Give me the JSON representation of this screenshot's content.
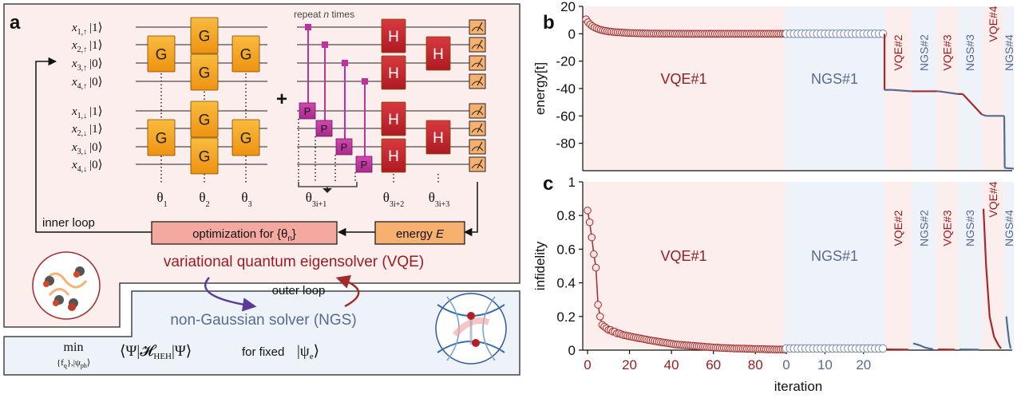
{
  "panel_labels": {
    "a": "a",
    "b": "b",
    "c": "c"
  },
  "circuit": {
    "qubits_up": [
      {
        "sym": "x",
        "sub": "1,↑",
        "ket": "|1⟩"
      },
      {
        "sym": "x",
        "sub": "2,↑",
        "ket": "|1⟩"
      },
      {
        "sym": "x",
        "sub": "3,↑",
        "ket": "|0⟩"
      },
      {
        "sym": "x",
        "sub": "4,↑",
        "ket": "|0⟩"
      }
    ],
    "qubits_down": [
      {
        "sym": "x",
        "sub": "1,↓",
        "ket": "|1⟩"
      },
      {
        "sym": "x",
        "sub": "2,↓",
        "ket": "|1⟩"
      },
      {
        "sym": "x",
        "sub": "3,↓",
        "ket": "|0⟩"
      },
      {
        "sym": "x",
        "sub": "4,↓",
        "ket": "|0⟩"
      }
    ],
    "gate_g": "G",
    "gate_h": "H",
    "gate_p": "P",
    "plus": "+",
    "repeat_label": "repeat",
    "repeat_n": "n",
    "repeat_times": "times",
    "theta_labels": [
      {
        "t": "θ",
        "sub": "1"
      },
      {
        "t": "θ",
        "sub": "2"
      },
      {
        "t": "θ",
        "sub": "3"
      },
      {
        "t": "θ",
        "sub": "3i+1"
      },
      {
        "t": "θ",
        "sub": "3i+2"
      },
      {
        "t": "θ",
        "sub": "3i+3"
      }
    ],
    "inner_loop": "inner loop",
    "optimization_text": "optimization for {θ",
    "optimization_sub": "n",
    "optimization_close": "}",
    "energy_text": "energy ",
    "energy_var": "E",
    "vqe_title": "variational quantum eigensolver (VQE)",
    "outer_loop": "outer loop",
    "ngs_title": "non-Gaussian solver (NGS)",
    "min_word": "min",
    "min_sub": "{f",
    "min_sub_q": "q",
    "min_sub_rest": "},|ψ",
    "min_sub_ph": "ph",
    "min_sub_end": "⟩",
    "expectation": "⟨Ψ|𝓗",
    "expectation_sub": "HEH",
    "expectation_end": "|Ψ⟩",
    "for_fixed": "for fixed",
    "psi_e": "|ψ",
    "psi_e_sub": "e",
    "psi_e_end": "⟩"
  },
  "colors": {
    "vqe_bg": "#fdeeee",
    "ngs_bg": "#eef2f9",
    "vqe_line": "#a42a2a",
    "ngs_line": "#56698f",
    "gate_g": "#f4a41d",
    "gate_h": "#cc2430",
    "gate_p": "#c0319f",
    "opt_box": "#f5a8a0",
    "energy_box": "#f7b06e",
    "vqe_text": "#9b1c20",
    "ngs_text": "#5a6a8e"
  },
  "chart_data": [
    {
      "id": "b",
      "type": "line",
      "ylabel": "energy[t]",
      "ylim": [
        -100,
        20
      ],
      "yticks": [
        20,
        0,
        -20,
        -40,
        -60,
        -80
      ],
      "segments": [
        {
          "label": "VQE#1",
          "kind": "vqe"
        },
        {
          "label": "NGS#1",
          "kind": "ngs"
        },
        {
          "label": "VQE#2",
          "kind": "vqe"
        },
        {
          "label": "NGS#2",
          "kind": "ngs"
        },
        {
          "label": "VQE#3",
          "kind": "vqe"
        },
        {
          "label": "NGS#3",
          "kind": "ngs"
        },
        {
          "label": "VQE#4",
          "kind": "vqe"
        },
        {
          "label": "NGS#4",
          "kind": "ngs"
        }
      ],
      "series_vqe1": [
        10.6,
        8.4,
        6.8,
        5.6,
        4.7,
        4.0,
        3.4,
        2.9,
        2.5,
        2.2,
        1.9,
        1.7,
        1.5,
        1.3,
        1.2,
        1.1,
        1.0,
        0.9,
        0.8,
        0.7,
        0.6,
        0.55,
        0.5,
        0.45,
        0.4,
        0.35,
        0.3,
        0.28,
        0.25,
        0.22,
        0.2,
        0.18,
        0.16,
        0.14,
        0.12,
        0.1,
        0.09,
        0.08,
        0.07,
        0.06,
        0.05,
        0.05,
        0.04,
        0.04,
        0.03,
        0.03,
        0.02,
        0.02,
        0.02,
        0.01,
        0.01,
        0.01,
        0.01,
        0,
        0,
        0,
        0,
        0,
        0,
        0,
        0,
        0,
        0,
        0,
        0,
        0,
        0,
        0,
        0,
        0,
        0,
        0,
        0,
        0,
        0,
        0,
        0,
        0,
        0,
        0,
        0,
        0,
        0,
        0,
        0,
        0,
        0,
        0,
        0,
        0,
        0,
        0,
        0,
        0,
        0
      ],
      "series_ngs1": [
        0,
        0,
        0,
        0,
        0,
        0,
        0,
        0,
        0,
        0,
        0,
        0,
        0,
        0,
        0,
        0,
        0,
        0,
        0,
        0,
        0,
        0,
        0,
        0,
        0,
        0
      ],
      "later_line": [
        [
          0,
          0
        ],
        [
          0.1,
          -40
        ],
        [
          1,
          -41
        ],
        [
          1.3,
          -41
        ],
        [
          2.0,
          -42
        ],
        [
          3.0,
          -42
        ],
        [
          3.1,
          -42
        ],
        [
          4.0,
          -44
        ],
        [
          4.2,
          -44
        ],
        [
          5.0,
          -59
        ],
        [
          5.2,
          -60
        ],
        [
          6.0,
          -60
        ],
        [
          6.05,
          -98
        ],
        [
          7.0,
          -98.5
        ]
      ]
    },
    {
      "id": "c",
      "type": "line",
      "xlabel": "iteration",
      "ylabel": "infidelity",
      "ylim": [
        0,
        1
      ],
      "yticks": [
        1,
        0.8,
        0.6,
        0.4,
        0.2,
        0
      ],
      "xticks_vqe1": [
        "0",
        "20",
        "40",
        "60",
        "80"
      ],
      "xticks_ngs1": [
        "0",
        "10",
        "20"
      ],
      "segments": [
        {
          "label": "VQE#1",
          "kind": "vqe"
        },
        {
          "label": "NGS#1",
          "kind": "ngs"
        },
        {
          "label": "VQE#2",
          "kind": "vqe"
        },
        {
          "label": "NGS#2",
          "kind": "ngs"
        },
        {
          "label": "VQE#3",
          "kind": "vqe"
        },
        {
          "label": "NGS#3",
          "kind": "ngs"
        },
        {
          "label": "VQE#4",
          "kind": "vqe"
        },
        {
          "label": "NGS#4",
          "kind": "ngs"
        }
      ],
      "series_vqe1": [
        0.83,
        0.76,
        0.67,
        0.57,
        0.49,
        0.27,
        0.2,
        0.15,
        0.14,
        0.13,
        0.12,
        0.12,
        0.11,
        0.11,
        0.1,
        0.1,
        0.095,
        0.09,
        0.088,
        0.085,
        0.082,
        0.08,
        0.077,
        0.075,
        0.072,
        0.07,
        0.068,
        0.065,
        0.063,
        0.06,
        0.058,
        0.056,
        0.054,
        0.052,
        0.05,
        0.048,
        0.046,
        0.044,
        0.042,
        0.04,
        0.038,
        0.036,
        0.034,
        0.033,
        0.032,
        0.031,
        0.03,
        0.029,
        0.028,
        0.027,
        0.026,
        0.025,
        0.024,
        0.023,
        0.022,
        0.021,
        0.02,
        0.019,
        0.018,
        0.017,
        0.016,
        0.015,
        0.015,
        0.014,
        0.013,
        0.013,
        0.012,
        0.012,
        0.011,
        0.011,
        0.01,
        0.01,
        0.01,
        0.009,
        0.009,
        0.009,
        0.008,
        0.008,
        0.008,
        0.007,
        0.007,
        0.007,
        0.006,
        0.006,
        0.006,
        0.005,
        0.005,
        0.005,
        0.005,
        0.004,
        0.004,
        0.004,
        0.004,
        0.004,
        0.003
      ],
      "series_ngs1": [
        0.01,
        0.01,
        0.01,
        0.01,
        0.01,
        0.01,
        0.01,
        0.01,
        0.01,
        0.01,
        0.01,
        0.01,
        0.01,
        0.01,
        0.01,
        0.01,
        0.01,
        0.01,
        0.01,
        0.01,
        0.01,
        0.01,
        0.01,
        0.01,
        0.01,
        0.01
      ],
      "later_vqe2": [
        [
          0,
          0.004
        ],
        [
          1,
          0.003
        ]
      ],
      "later_ngs2": [
        [
          0,
          0.04
        ],
        [
          0.3,
          0.03
        ],
        [
          0.6,
          0.015
        ],
        [
          1,
          0.005
        ]
      ],
      "later_vqe3": [
        [
          0,
          0.004
        ],
        [
          1,
          0.003
        ]
      ],
      "later_ngs3": [
        [
          0,
          0.004
        ],
        [
          1,
          0.003
        ]
      ],
      "later_vqe4": [
        [
          0,
          0.84
        ],
        [
          0.15,
          0.5
        ],
        [
          0.35,
          0.2
        ],
        [
          0.6,
          0.08
        ],
        [
          0.85,
          0.03
        ],
        [
          1,
          0.01
        ]
      ],
      "later_ngs4": [
        [
          0.1,
          0.2
        ],
        [
          0.4,
          0.12
        ],
        [
          0.7,
          0.05
        ],
        [
          1,
          0.01
        ]
      ]
    }
  ]
}
